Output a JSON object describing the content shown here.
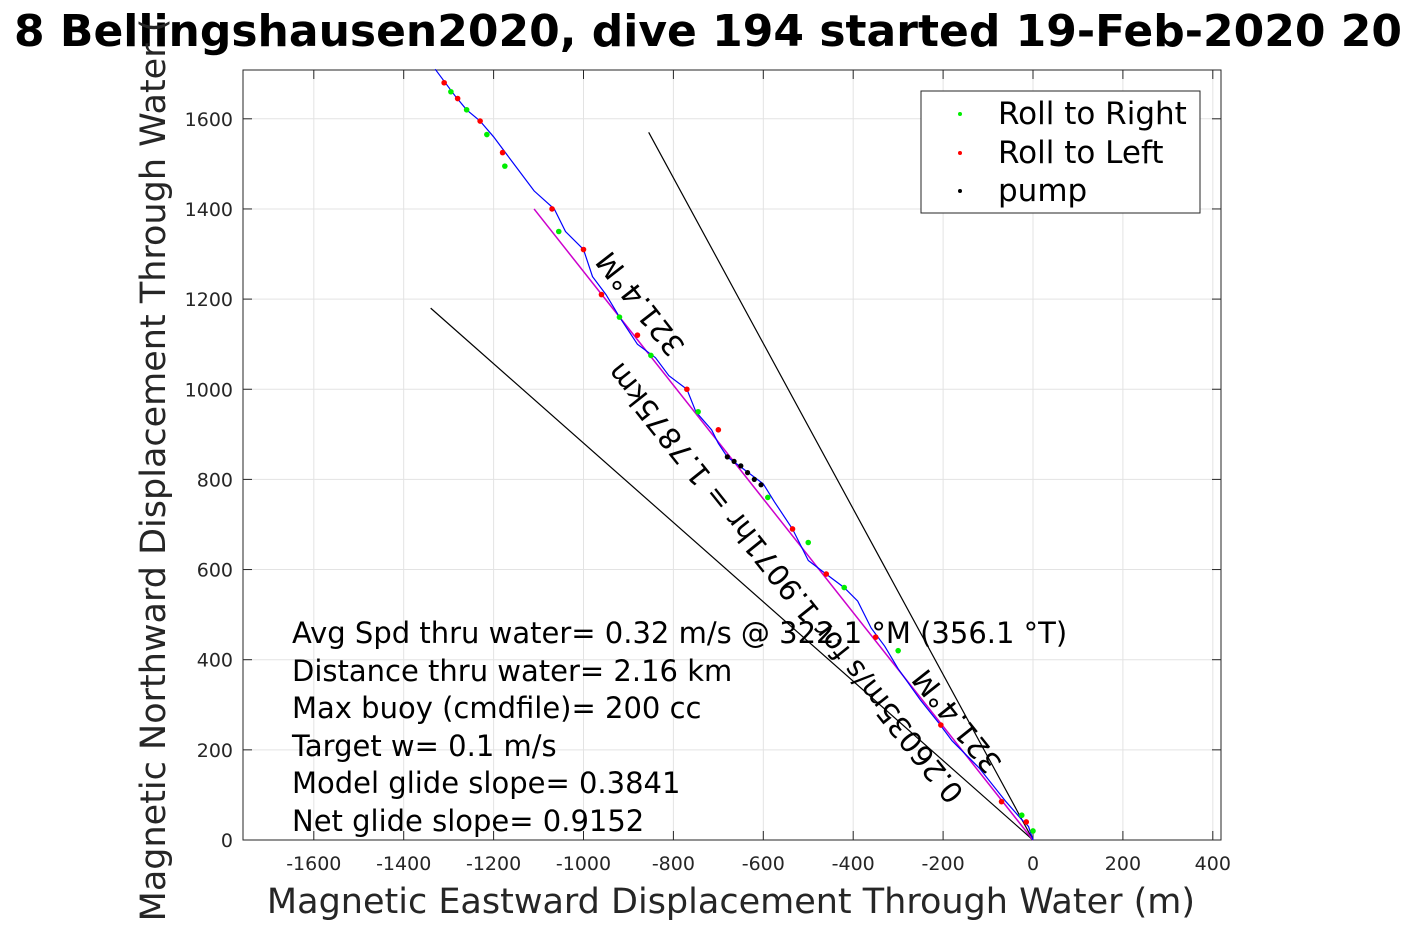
{
  "title": "8 Bellingshausen2020, dive 194 started 19-Feb-2020 20",
  "chart_data": {
    "type": "scatter",
    "xlabel": "Magnetic Eastward Displacement Through Water (m)",
    "ylabel": "Magnetic Northward Displacement Through Water (",
    "xlim": [
      -1760,
      410
    ],
    "ylim": [
      0,
      1710
    ],
    "xticks": [
      -1600,
      -1400,
      -1200,
      -1000,
      -800,
      -600,
      -400,
      -200,
      0,
      200,
      400
    ],
    "yticks": [
      0,
      200,
      400,
      600,
      800,
      1000,
      1200,
      1400,
      1600
    ],
    "grid": true,
    "legend_position": "top-right",
    "legend": [
      {
        "label": "Roll to Right",
        "color": "#00ee00"
      },
      {
        "label": "Roll to Left",
        "color": "#ff0000"
      },
      {
        "label": "pump",
        "color": "#000000"
      }
    ],
    "track": [
      [
        0,
        0
      ],
      [
        -10,
        30
      ],
      [
        -25,
        45
      ],
      [
        -60,
        85
      ],
      [
        -120,
        160
      ],
      [
        -180,
        220
      ],
      [
        -210,
        260
      ],
      [
        -250,
        310
      ],
      [
        -300,
        380
      ],
      [
        -330,
        430
      ],
      [
        -360,
        470
      ],
      [
        -390,
        530
      ],
      [
        -420,
        560
      ],
      [
        -460,
        590
      ],
      [
        -500,
        620
      ],
      [
        -535,
        690
      ],
      [
        -575,
        750
      ],
      [
        -600,
        790
      ],
      [
        -640,
        820
      ],
      [
        -680,
        850
      ],
      [
        -700,
        880
      ],
      [
        -715,
        910
      ],
      [
        -750,
        950
      ],
      [
        -770,
        1000
      ],
      [
        -810,
        1030
      ],
      [
        -840,
        1070
      ],
      [
        -880,
        1100
      ],
      [
        -920,
        1160
      ],
      [
        -950,
        1210
      ],
      [
        -980,
        1250
      ],
      [
        -1000,
        1310
      ],
      [
        -1040,
        1350
      ],
      [
        -1065,
        1400
      ],
      [
        -1110,
        1440
      ],
      [
        -1140,
        1480
      ],
      [
        -1170,
        1520
      ],
      [
        -1200,
        1560
      ],
      [
        -1230,
        1595
      ],
      [
        -1260,
        1620
      ],
      [
        -1285,
        1650
      ],
      [
        -1300,
        1670
      ],
      [
        -1315,
        1690
      ],
      [
        -1330,
        1710
      ]
    ],
    "roll_right": [
      [
        0,
        20
      ],
      [
        -25,
        55
      ],
      [
        -300,
        420
      ],
      [
        -420,
        560
      ],
      [
        -500,
        660
      ],
      [
        -590,
        760
      ],
      [
        -745,
        950
      ],
      [
        -850,
        1075
      ],
      [
        -920,
        1160
      ],
      [
        -1055,
        1350
      ],
      [
        -1175,
        1495
      ],
      [
        -1215,
        1565
      ],
      [
        -1260,
        1620
      ],
      [
        -1295,
        1660
      ]
    ],
    "roll_left": [
      [
        -15,
        40
      ],
      [
        -70,
        85
      ],
      [
        -205,
        255
      ],
      [
        -350,
        450
      ],
      [
        -460,
        590
      ],
      [
        -535,
        690
      ],
      [
        -700,
        910
      ],
      [
        -770,
        1000
      ],
      [
        -880,
        1120
      ],
      [
        -960,
        1210
      ],
      [
        -1000,
        1310
      ],
      [
        -1070,
        1400
      ],
      [
        -1180,
        1525
      ],
      [
        -1230,
        1595
      ],
      [
        -1280,
        1645
      ],
      [
        -1310,
        1680
      ]
    ],
    "pump": [
      [
        -680,
        850
      ],
      [
        -665,
        840
      ],
      [
        -650,
        830
      ],
      [
        -635,
        815
      ],
      [
        -620,
        800
      ],
      [
        -605,
        788
      ]
    ],
    "heading_line": [
      [
        0,
        0
      ],
      [
        -1110,
        1400
      ]
    ],
    "cone_lines": [
      [
        [
          0,
          0
        ],
        [
          -855,
          1570
        ]
      ],
      [
        [
          0,
          0
        ],
        [
          -1340,
          1180
        ]
      ]
    ],
    "annotations": [
      "Avg Spd thru water=  0.32 m/s @ 322.1 °M (356.1 °T)",
      "Distance thru water=  2.16 km",
      "Max buoy (cmdfile)= 200 cc",
      "Target w= 0.1 m/s",
      "Model glide slope= 0.3841",
      "Net glide slope= 0.9152"
    ],
    "rotated_labels": [
      "321.4°M",
      "0.26035m/s for 1.9071hr = 1.7875km",
      "321.4°M"
    ]
  }
}
